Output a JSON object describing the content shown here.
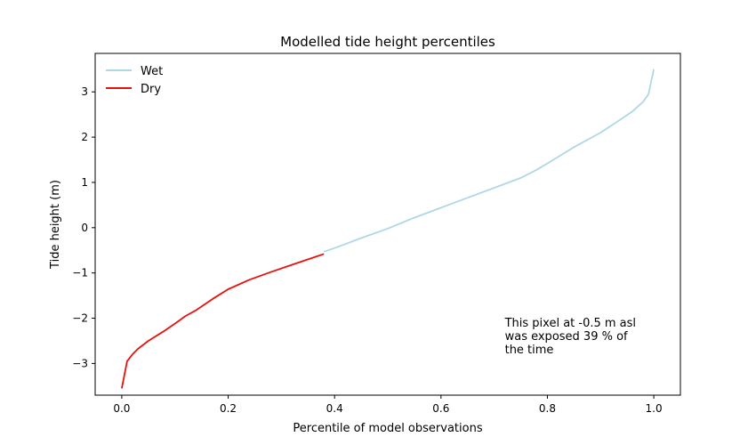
{
  "chart_data": {
    "type": "line",
    "title": "Modelled tide height percentiles",
    "xlabel": "Percentile of model observations",
    "ylabel": "Tide height (m)",
    "xlim": [
      -0.05,
      1.05
    ],
    "ylim": [
      -3.7,
      3.85
    ],
    "xticks": [
      0.0,
      0.2,
      0.4,
      0.6,
      0.8,
      1.0
    ],
    "xtick_labels": [
      "0.0",
      "0.2",
      "0.4",
      "0.6",
      "0.8",
      "1.0"
    ],
    "yticks": [
      -3,
      -2,
      -1,
      0,
      1,
      2,
      3
    ],
    "ytick_labels": [
      "−3",
      "−2",
      "−1",
      "0",
      "1",
      "2",
      "3"
    ],
    "grid": false,
    "legend_position": "upper-left",
    "series": [
      {
        "name": "Wet",
        "color": "#add8e6",
        "x": [
          0.38,
          0.4,
          0.45,
          0.5,
          0.55,
          0.6,
          0.65,
          0.7,
          0.75,
          0.78,
          0.8,
          0.85,
          0.9,
          0.93,
          0.96,
          0.98,
          0.99,
          1.0
        ],
        "y": [
          -0.53,
          -0.45,
          -0.23,
          -0.02,
          0.22,
          0.44,
          0.66,
          0.88,
          1.1,
          1.28,
          1.42,
          1.78,
          2.1,
          2.33,
          2.57,
          2.78,
          2.95,
          3.5
        ]
      },
      {
        "name": "Dry",
        "color": "#e8120c",
        "x": [
          0.0,
          0.01,
          0.02,
          0.03,
          0.05,
          0.08,
          0.1,
          0.12,
          0.14,
          0.17,
          0.2,
          0.24,
          0.28,
          0.32,
          0.36,
          0.38
        ],
        "y": [
          -3.55,
          -2.95,
          -2.8,
          -2.68,
          -2.5,
          -2.28,
          -2.12,
          -1.95,
          -1.82,
          -1.58,
          -1.36,
          -1.15,
          -0.98,
          -0.82,
          -0.66,
          -0.58
        ]
      }
    ],
    "annotation": {
      "lines": [
        "This pixel at -0.5 m asl",
        "was exposed 39 % of",
        "the time"
      ],
      "x": 0.72,
      "y": -2.7
    }
  }
}
